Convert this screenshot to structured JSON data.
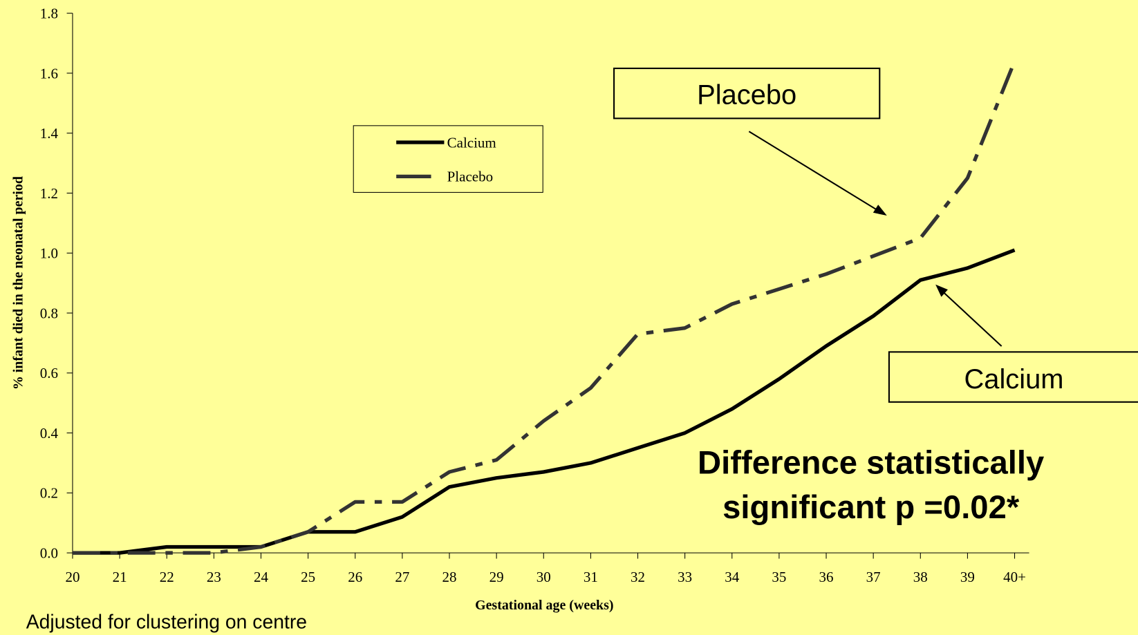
{
  "chart_data": {
    "type": "line",
    "xlabel": "Gestational age (weeks)",
    "ylabel": "%  infant died in the neonatal period",
    "categories": [
      "20",
      "21",
      "22",
      "23",
      "24",
      "25",
      "26",
      "27",
      "28",
      "29",
      "30",
      "31",
      "32",
      "33",
      "34",
      "35",
      "36",
      "37",
      "38",
      "39",
      "40+"
    ],
    "series": [
      {
        "name": "Calcium",
        "color": "#000000",
        "style": "solid",
        "values": [
          0,
          0,
          0.02,
          0.02,
          0.02,
          0.07,
          0.07,
          0.12,
          0.22,
          0.25,
          0.27,
          0.3,
          0.35,
          0.4,
          0.48,
          0.58,
          0.69,
          0.79,
          0.91,
          0.95,
          1.01
        ]
      },
      {
        "name": "Placebo",
        "color": "#333333",
        "style": "dashdot",
        "values": [
          0,
          0,
          0,
          0,
          0.02,
          0.07,
          0.17,
          0.17,
          0.27,
          0.31,
          0.44,
          0.55,
          0.73,
          0.75,
          0.83,
          0.88,
          0.93,
          0.99,
          1.05,
          1.25,
          1.64
        ]
      }
    ],
    "ylim": [
      0,
      1.8
    ],
    "yticks": [
      {
        "value": 0,
        "label": "0.0"
      },
      0.2,
      0.4,
      0.6,
      0.8,
      {
        "value": 1,
        "label": "1.0"
      },
      1.2,
      1.4,
      1.6,
      1.8
    ],
    "annotations": [
      "Placebo",
      "Calcium"
    ],
    "note": [
      "Difference statistically",
      "significant p =0.02*"
    ],
    "footnote": "Adjusted for clustering on centre"
  }
}
